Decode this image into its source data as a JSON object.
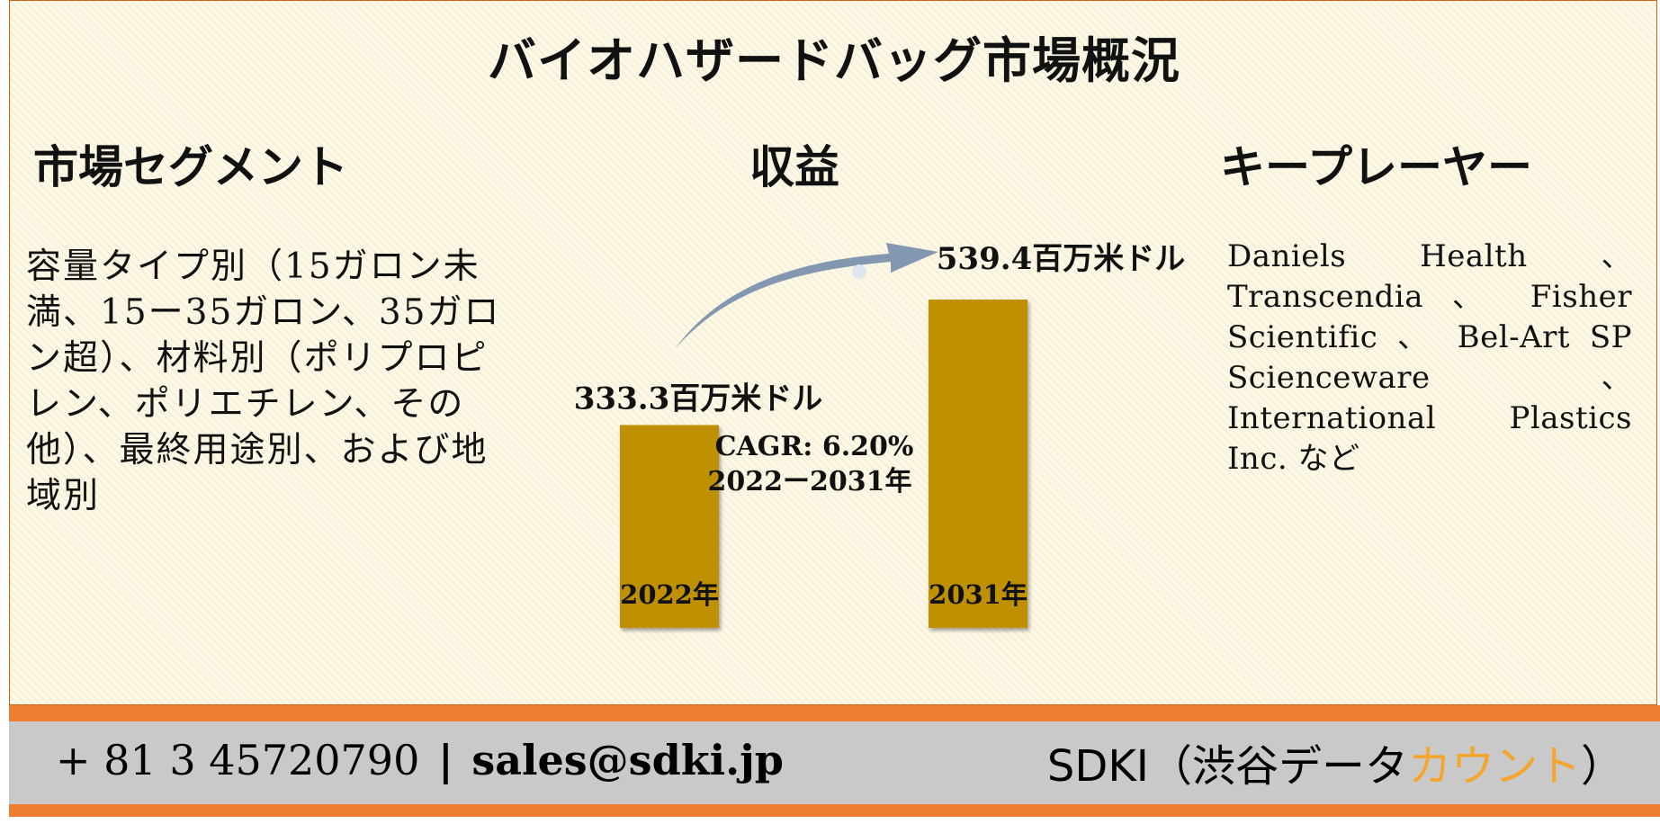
{
  "title": "バイオハザードバッグ市場概況",
  "headings": {
    "segment": "市場セグメント",
    "revenue": "収益",
    "players": "キープレーヤー"
  },
  "segment_text": "容量タイプ別（15ガロン未満、15ー35ガロン、35ガロン超）、材料別（ポリプロピレン、ポリエチレン、その他）、最終用途別、および地域別",
  "players_text": "Daniels Health 、Transcendia 、 Fisher Scientific 、 Bel-Art SP Scienceware 、International Plastics Inc. など",
  "chart_data": {
    "type": "bar",
    "categories": [
      "2022年",
      "2031年"
    ],
    "values": [
      333.3,
      539.4
    ],
    "value_labels": [
      "333.3百万米ドル",
      "539.4百万米ドル"
    ],
    "annotation": [
      "CAGR: 6.20%",
      "2022ー2031年"
    ],
    "title": "",
    "xlabel": "",
    "ylabel": "",
    "bar_color": "#bf9000",
    "arrow_color": "#8497b0"
  },
  "footer": {
    "phone": "+ 81 3 45720790",
    "separator": "|",
    "email": "sales@sdki.jp",
    "brand_prefix": "SDKI（渋谷データ",
    "brand_accent": "カウント",
    "brand_suffix": "）"
  },
  "colors": {
    "border": "#c8651b",
    "footer_orange": "#ed7d31",
    "footer_gray": "#c9c9c9",
    "brand_accent": "#f4a52b"
  }
}
